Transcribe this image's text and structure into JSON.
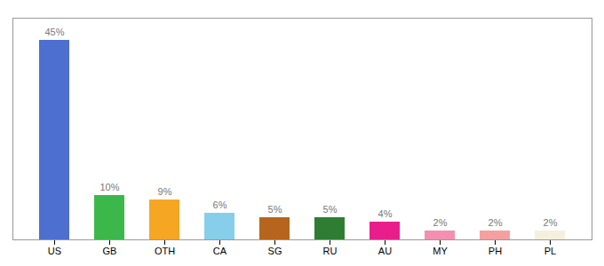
{
  "chart_data": {
    "type": "bar",
    "categories": [
      "US",
      "GB",
      "OTH",
      "CA",
      "SG",
      "RU",
      "AU",
      "MY",
      "PH",
      "PL"
    ],
    "values": [
      45,
      10,
      9,
      6,
      5,
      5,
      4,
      2,
      2,
      2
    ],
    "value_labels": [
      "45%",
      "10%",
      "9%",
      "6%",
      "5%",
      "5%",
      "4%",
      "2%",
      "2%",
      "2%"
    ],
    "colors": [
      "#4d6fd0",
      "#3cb84a",
      "#f5a623",
      "#87ceeb",
      "#b5651d",
      "#2e7d32",
      "#e91e8c",
      "#f48fb1",
      "#f4a0a0",
      "#f5f0dc"
    ],
    "ylim": [
      0,
      50
    ],
    "data_labels": true,
    "tick_labels": "x",
    "grid": false
  }
}
